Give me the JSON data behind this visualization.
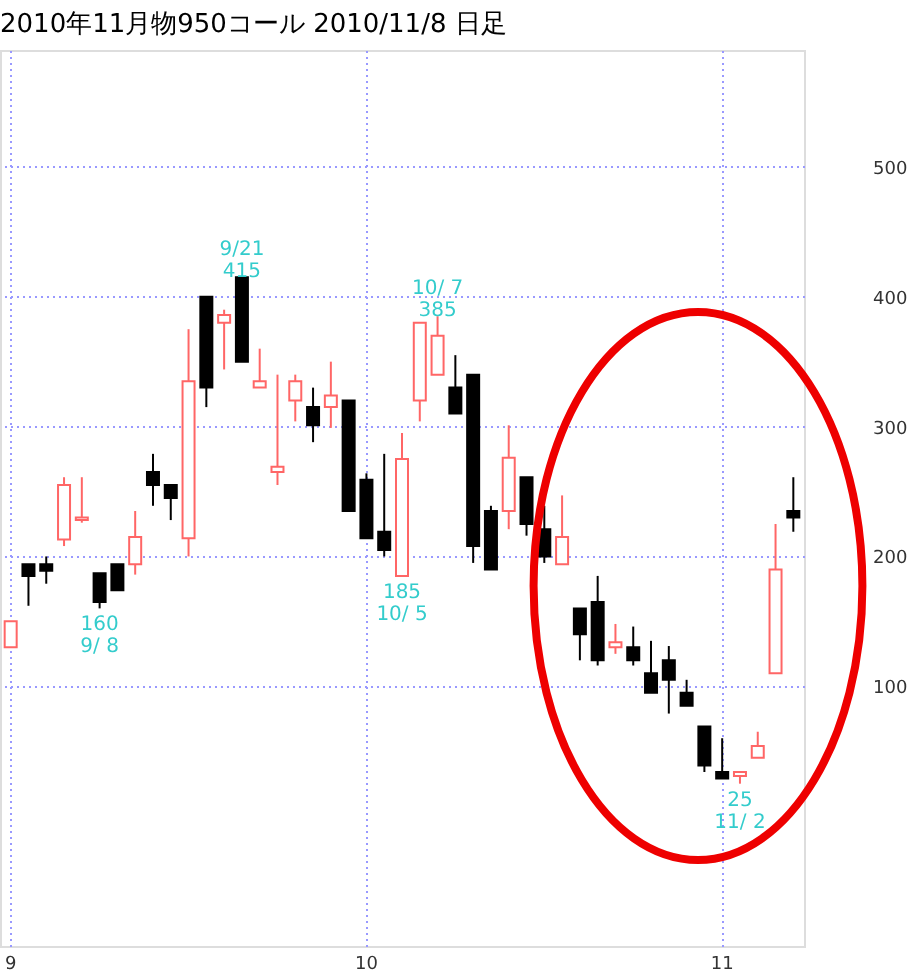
{
  "chart_data": {
    "type": "candlestick",
    "title": "2010年11月物950コール  2010/11/8  日足",
    "categories": [
      "9",
      null,
      null,
      null,
      null,
      null,
      null,
      null,
      null,
      null,
      null,
      null,
      null,
      null,
      null,
      null,
      null,
      null,
      null,
      null,
      "10",
      null,
      null,
      null,
      null,
      null,
      null,
      null,
      null,
      null,
      null,
      null,
      null,
      null,
      null,
      null,
      null,
      null,
      null,
      null,
      "11",
      null,
      null,
      null,
      null
    ],
    "ohlc": [
      [
        130,
        150,
        130,
        150
      ],
      [
        194,
        194,
        162,
        185
      ],
      [
        194,
        200,
        179,
        189
      ],
      [
        213,
        261,
        208,
        255
      ],
      [
        228,
        261,
        226,
        230
      ],
      [
        187,
        187,
        160,
        165
      ],
      [
        194,
        194,
        174,
        174
      ],
      [
        194,
        235,
        186,
        215
      ],
      [
        265,
        279,
        239,
        255
      ],
      [
        255,
        255,
        228,
        245
      ],
      [
        214,
        375,
        200,
        335
      ],
      [
        400,
        400,
        315,
        330
      ],
      [
        380,
        390,
        344,
        386
      ],
      [
        415,
        415,
        350,
        350
      ],
      [
        330,
        360,
        330,
        335
      ],
      [
        265,
        340,
        255,
        269
      ],
      [
        320,
        340,
        304,
        335
      ],
      [
        315,
        330,
        288,
        301
      ],
      [
        315,
        350,
        299,
        324
      ],
      [
        320,
        320,
        235,
        235
      ],
      [
        259,
        264,
        214,
        214
      ],
      [
        219,
        279,
        200,
        205
      ],
      [
        185,
        295,
        185,
        275
      ],
      [
        320,
        380,
        304,
        380
      ],
      [
        340,
        385,
        340,
        370
      ],
      [
        330,
        355,
        310,
        310
      ],
      [
        340,
        340,
        195,
        208
      ],
      [
        235,
        239,
        190,
        190
      ],
      [
        235,
        301,
        221,
        276
      ],
      [
        261,
        261,
        216,
        225
      ],
      [
        221,
        239,
        195,
        200
      ],
      [
        194,
        247,
        194,
        215
      ],
      [
        160,
        160,
        120,
        140
      ],
      [
        165,
        185,
        116,
        120
      ],
      [
        130,
        148,
        125,
        134
      ],
      [
        130,
        146,
        116,
        120
      ],
      [
        110,
        135,
        95,
        95
      ],
      [
        120,
        131,
        79,
        105
      ],
      [
        95,
        105,
        85,
        85
      ],
      [
        69,
        69,
        34,
        39
      ],
      [
        34,
        60,
        29,
        29
      ],
      [
        31,
        34,
        25,
        34
      ],
      [
        45,
        65,
        45,
        54
      ],
      [
        110,
        225,
        110,
        190
      ],
      [
        235,
        261,
        219,
        230
      ]
    ],
    "colors": [
      "#ff6666",
      "#000000",
      "#000000",
      "#ff6666",
      "#ff6666",
      "#000000",
      "#000000",
      "#ff6666",
      "#000000",
      "#000000",
      "#ff6666",
      "#000000",
      "#ff6666",
      "#000000",
      "#ff6666",
      "#ff6666",
      "#ff6666",
      "#000000",
      "#ff6666",
      "#000000",
      "#000000",
      "#000000",
      "#ff6666",
      "#ff6666",
      "#ff6666",
      "#000000",
      "#000000",
      "#000000",
      "#ff6666",
      "#000000",
      "#000000",
      "#ff6666",
      "#000000",
      "#000000",
      "#ff6666",
      "#000000",
      "#000000",
      "#000000",
      "#000000",
      "#000000",
      "#000000",
      "#ff6666",
      "#ff6666",
      "#ff6666",
      "#000000"
    ],
    "ylim": [
      -100,
      590
    ],
    "yticks": [
      100,
      200,
      300,
      400,
      500
    ],
    "grid": true,
    "annotations": [
      {
        "text": "160\n9/ 8",
        "y": 160
      },
      {
        "text": "9/21\n415",
        "y": 415
      },
      {
        "text": "185\n10/ 5",
        "y": 185
      },
      {
        "text": "10/ 7\n385",
        "y": 385
      },
      {
        "text": "25\n11/ 2",
        "y": 25
      }
    ]
  }
}
